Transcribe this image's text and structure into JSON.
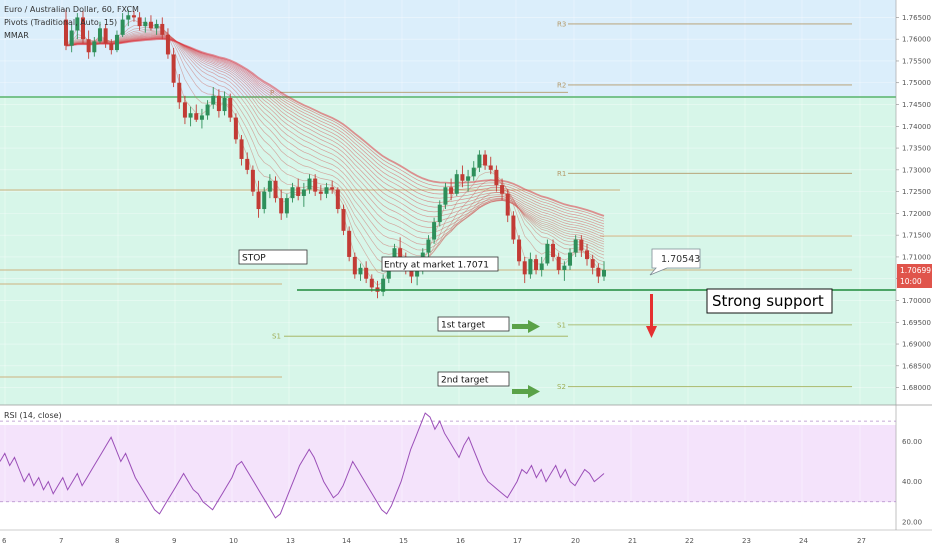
{
  "chart_data": {
    "type": "candlestick",
    "header": {
      "symbol_title": "Euro / Australian Dollar, 60, FXCM",
      "indicator_1": "Pivots (Traditional, Auto, 15)",
      "indicator_2": "MMAR"
    },
    "y_axis": {
      "ylim": [
        1.676,
        1.769
      ],
      "ticks": [
        "1.76500",
        "1.76000",
        "1.75500",
        "1.75000",
        "1.74500",
        "1.74000",
        "1.73500",
        "1.73000",
        "1.72500",
        "1.72000",
        "1.71500",
        "1.71000",
        "1.70500",
        "1.70000",
        "1.69500",
        "1.69000",
        "1.68500",
        "1.68000"
      ]
    },
    "x_axis": {
      "labels": [
        "6",
        "7",
        "8",
        "9",
        "10",
        "13",
        "14",
        "15",
        "16",
        "17",
        "20",
        "21",
        "22",
        "23",
        "24",
        "27"
      ]
    },
    "price_tag": {
      "price": "1.70699",
      "countdown": "10:00",
      "color": "#e0544b"
    },
    "pivots": {
      "R3": 1.7635,
      "R2": 1.7495,
      "P": 1.7478,
      "R1": 1.7292,
      "S1_left": 1.6918,
      "S1_right": 1.6944,
      "S2": 1.6802,
      "labels": [
        "R3",
        "R2",
        "P",
        "R1",
        "S1",
        "S1",
        "S2"
      ]
    },
    "candles_ohlc": [
      [
        1.7645,
        1.7668,
        1.7575,
        1.7585
      ],
      [
        1.7585,
        1.7635,
        1.757,
        1.762
      ],
      [
        1.762,
        1.766,
        1.76,
        1.765
      ],
      [
        1.765,
        1.7665,
        1.759,
        1.76
      ],
      [
        1.76,
        1.762,
        1.7555,
        1.757
      ],
      [
        1.757,
        1.7605,
        1.756,
        1.7595
      ],
      [
        1.7595,
        1.764,
        1.759,
        1.7625
      ],
      [
        1.7625,
        1.7635,
        1.758,
        1.759
      ],
      [
        1.759,
        1.76,
        1.7565,
        1.7575
      ],
      [
        1.7575,
        1.762,
        1.757,
        1.761
      ],
      [
        1.761,
        1.766,
        1.7605,
        1.7645
      ],
      [
        1.7645,
        1.7668,
        1.763,
        1.7655
      ],
      [
        1.7655,
        1.7665,
        1.764,
        1.765
      ],
      [
        1.765,
        1.7662,
        1.762,
        1.763
      ],
      [
        1.763,
        1.765,
        1.7615,
        1.764
      ],
      [
        1.764,
        1.7655,
        1.762,
        1.7625
      ],
      [
        1.7625,
        1.7645,
        1.761,
        1.7635
      ],
      [
        1.7635,
        1.765,
        1.76,
        1.761
      ],
      [
        1.761,
        1.7625,
        1.7555,
        1.7565
      ],
      [
        1.7565,
        1.758,
        1.749,
        1.75
      ],
      [
        1.75,
        1.752,
        1.744,
        1.7455
      ],
      [
        1.7455,
        1.747,
        1.7405,
        1.742
      ],
      [
        1.742,
        1.7445,
        1.74,
        1.743
      ],
      [
        1.743,
        1.745,
        1.741,
        1.7415
      ],
      [
        1.7415,
        1.744,
        1.7395,
        1.7425
      ],
      [
        1.7425,
        1.746,
        1.7415,
        1.745
      ],
      [
        1.745,
        1.749,
        1.744,
        1.747
      ],
      [
        1.747,
        1.7485,
        1.742,
        1.7435
      ],
      [
        1.7435,
        1.748,
        1.7425,
        1.7465
      ],
      [
        1.7465,
        1.7475,
        1.741,
        1.742
      ],
      [
        1.742,
        1.743,
        1.736,
        1.737
      ],
      [
        1.737,
        1.738,
        1.731,
        1.7325
      ],
      [
        1.7325,
        1.734,
        1.729,
        1.73
      ],
      [
        1.73,
        1.731,
        1.724,
        1.725
      ],
      [
        1.725,
        1.7275,
        1.719,
        1.721
      ],
      [
        1.721,
        1.726,
        1.72,
        1.725
      ],
      [
        1.725,
        1.729,
        1.7235,
        1.7275
      ],
      [
        1.7275,
        1.7285,
        1.7225,
        1.7235
      ],
      [
        1.7235,
        1.7255,
        1.7185,
        1.72
      ],
      [
        1.72,
        1.7245,
        1.719,
        1.7235
      ],
      [
        1.7235,
        1.727,
        1.7225,
        1.726
      ],
      [
        1.726,
        1.728,
        1.723,
        1.724
      ],
      [
        1.724,
        1.727,
        1.7215,
        1.7255
      ],
      [
        1.7255,
        1.729,
        1.7245,
        1.728
      ],
      [
        1.728,
        1.729,
        1.724,
        1.725
      ],
      [
        1.725,
        1.7265,
        1.723,
        1.7245
      ],
      [
        1.7245,
        1.727,
        1.7235,
        1.726
      ],
      [
        1.726,
        1.7275,
        1.7245,
        1.7255
      ],
      [
        1.7255,
        1.726,
        1.72,
        1.721
      ],
      [
        1.721,
        1.722,
        1.715,
        1.716
      ],
      [
        1.716,
        1.717,
        1.709,
        1.71
      ],
      [
        1.71,
        1.711,
        1.705,
        1.706
      ],
      [
        1.706,
        1.7085,
        1.7045,
        1.7075
      ],
      [
        1.7075,
        1.709,
        1.704,
        1.705
      ],
      [
        1.705,
        1.706,
        1.702,
        1.703
      ],
      [
        1.703,
        1.7045,
        1.7005,
        1.702
      ],
      [
        1.702,
        1.706,
        1.701,
        1.705
      ],
      [
        1.705,
        1.71,
        1.704,
        1.709
      ],
      [
        1.709,
        1.713,
        1.708,
        1.712
      ],
      [
        1.712,
        1.7145,
        1.709,
        1.71
      ],
      [
        1.71,
        1.711,
        1.706,
        1.707
      ],
      [
        1.707,
        1.709,
        1.704,
        1.7055
      ],
      [
        1.7055,
        1.708,
        1.7035,
        1.7071
      ],
      [
        1.7071,
        1.712,
        1.706,
        1.711
      ],
      [
        1.711,
        1.715,
        1.71,
        1.714
      ],
      [
        1.714,
        1.719,
        1.713,
        1.718
      ],
      [
        1.718,
        1.723,
        1.717,
        1.722
      ],
      [
        1.722,
        1.727,
        1.721,
        1.726
      ],
      [
        1.726,
        1.728,
        1.723,
        1.7245
      ],
      [
        1.7245,
        1.73,
        1.724,
        1.729
      ],
      [
        1.729,
        1.731,
        1.726,
        1.7275
      ],
      [
        1.7275,
        1.73,
        1.725,
        1.7285
      ],
      [
        1.7285,
        1.732,
        1.7275,
        1.7305
      ],
      [
        1.7305,
        1.7345,
        1.7295,
        1.7335
      ],
      [
        1.7335,
        1.7345,
        1.73,
        1.731
      ],
      [
        1.731,
        1.733,
        1.729,
        1.73
      ],
      [
        1.73,
        1.731,
        1.725,
        1.7265
      ],
      [
        1.7265,
        1.728,
        1.723,
        1.7245
      ],
      [
        1.7245,
        1.7255,
        1.718,
        1.7195
      ],
      [
        1.7195,
        1.7205,
        1.713,
        1.714
      ],
      [
        1.714,
        1.715,
        1.708,
        1.709
      ],
      [
        1.709,
        1.71,
        1.704,
        1.706
      ],
      [
        1.706,
        1.711,
        1.705,
        1.7095
      ],
      [
        1.7095,
        1.7105,
        1.706,
        1.707
      ],
      [
        1.707,
        1.71,
        1.7055,
        1.7085
      ],
      [
        1.7085,
        1.714,
        1.708,
        1.713
      ],
      [
        1.713,
        1.714,
        1.709,
        1.71
      ],
      [
        1.71,
        1.711,
        1.706,
        1.707
      ],
      [
        1.707,
        1.709,
        1.7045,
        1.708
      ],
      [
        1.708,
        1.712,
        1.707,
        1.711
      ],
      [
        1.711,
        1.715,
        1.71,
        1.714
      ],
      [
        1.714,
        1.715,
        1.71,
        1.7115
      ],
      [
        1.7115,
        1.713,
        1.708,
        1.7095
      ],
      [
        1.7095,
        1.7105,
        1.706,
        1.7075
      ],
      [
        1.7075,
        1.7085,
        1.704,
        1.7055
      ],
      [
        1.7055,
        1.709,
        1.7045,
        1.707
      ]
    ],
    "rsi": {
      "title": "RSI (14, close)",
      "ylim": [
        16,
        78
      ],
      "upper_band": 70,
      "lower_band": 30,
      "ticks": [
        "60.00",
        "40.00",
        "20.00"
      ],
      "values": [
        50,
        54,
        48,
        52,
        46,
        40,
        44,
        38,
        42,
        36,
        40,
        34,
        38,
        42,
        36,
        40,
        44,
        38,
        42,
        46,
        50,
        54,
        58,
        62,
        56,
        50,
        54,
        48,
        42,
        38,
        34,
        30,
        26,
        24,
        28,
        32,
        36,
        40,
        44,
        40,
        36,
        34,
        30,
        28,
        26,
        30,
        34,
        38,
        42,
        48,
        50,
        46,
        42,
        38,
        34,
        30,
        26,
        22,
        24,
        30,
        36,
        42,
        48,
        52,
        56,
        52,
        46,
        40,
        36,
        32,
        34,
        38,
        44,
        50,
        46,
        42,
        38,
        34,
        30,
        26,
        24,
        28,
        34,
        40,
        48,
        56,
        62,
        68,
        74,
        72,
        66,
        70,
        64,
        60,
        56,
        52,
        58,
        62,
        56,
        50,
        44,
        40,
        38,
        36,
        34,
        32,
        36,
        40,
        46,
        44,
        48,
        42,
        46,
        40,
        44,
        48,
        42,
        46,
        40,
        38,
        42,
        46,
        44,
        40,
        42,
        44
      ]
    },
    "annotations": [
      {
        "text": "STOP"
      },
      {
        "text": "Entry at market 1.7071"
      },
      {
        "text": "1.70543"
      },
      {
        "text": "Strong support"
      },
      {
        "text": "1st target"
      },
      {
        "text": "2nd target"
      }
    ]
  }
}
